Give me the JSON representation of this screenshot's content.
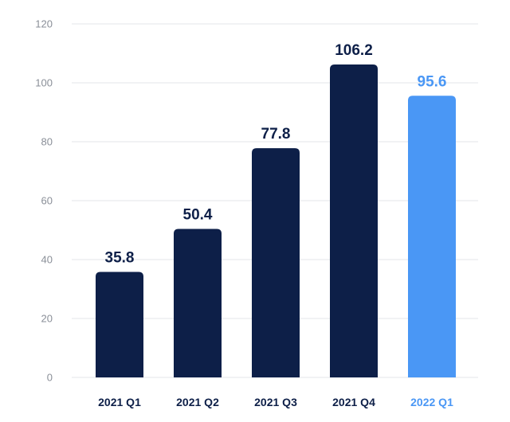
{
  "chart_data": {
    "type": "bar",
    "title": "",
    "xlabel": "",
    "ylabel": "",
    "categories": [
      "2021 Q1",
      "2021 Q2",
      "2021 Q3",
      "2021 Q4",
      "2022 Q1"
    ],
    "values": [
      35.8,
      50.4,
      77.8,
      106.2,
      95.6
    ],
    "value_labels": [
      "35.8",
      "50.4",
      "77.8",
      "106.2",
      "95.6"
    ],
    "ylim": [
      0,
      120
    ],
    "yticks": [
      "0",
      "20",
      "40",
      "60",
      "80",
      "100",
      "120"
    ],
    "grid": true,
    "legend": "none",
    "colors": {
      "bar": "#0d1f48",
      "highlight_bar": "#4a97f5",
      "highlight_text": "#4a97f5",
      "text": "#0d1f48"
    },
    "highlight_index": 4
  }
}
